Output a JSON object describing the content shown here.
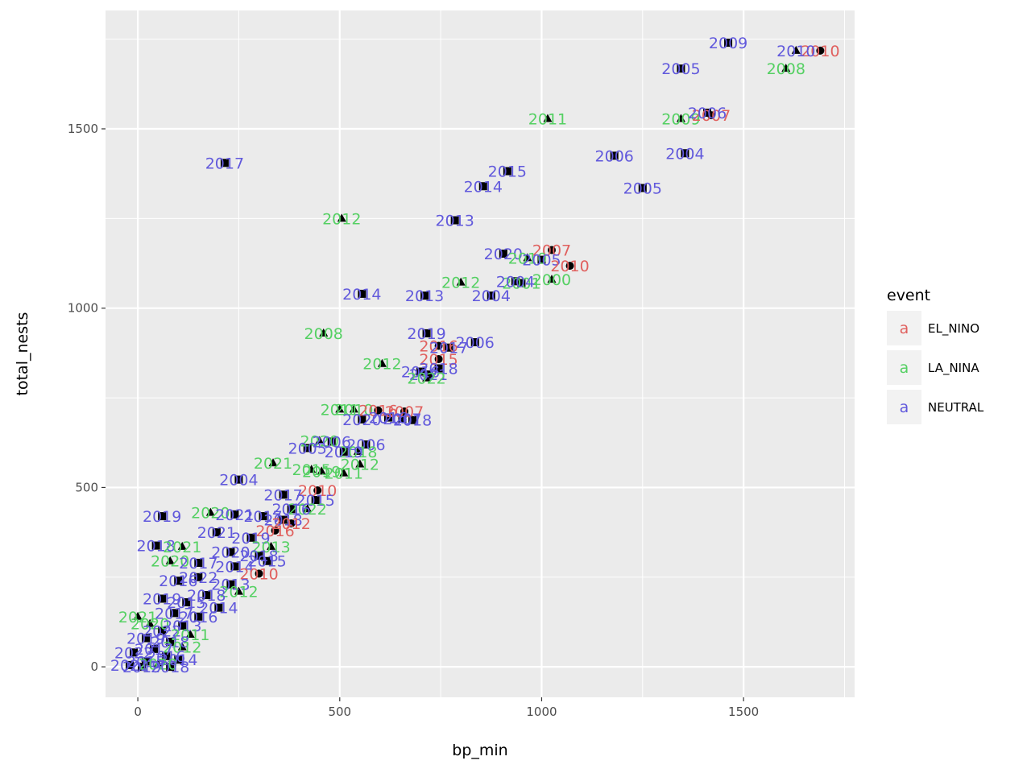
{
  "chart_data": {
    "type": "scatter",
    "xlabel": "bp_min",
    "ylabel": "total_nests",
    "xlim": [
      -80,
      1775
    ],
    "ylim": [
      -85,
      1830
    ],
    "x_ticks": [
      0,
      500,
      1000,
      1500
    ],
    "y_ticks": [
      0,
      500,
      1000,
      1500
    ],
    "grid": true,
    "legend": {
      "title": "event",
      "placement": "right",
      "key_glyph": "a",
      "entries": [
        {
          "name": "EL_NINO",
          "color": "#E0605E"
        },
        {
          "name": "LA_NINA",
          "color": "#55D063"
        },
        {
          "name": "NEUTRAL",
          "color": "#6159DC"
        }
      ]
    },
    "colors": {
      "EL_NINO": "#E0605E",
      "LA_NINA": "#55D063",
      "NEUTRAL": "#6159DC"
    },
    "points": [
      {
        "x": 1462,
        "y": 1740,
        "label": "2009",
        "event": "NEUTRAL",
        "shape": "square"
      },
      {
        "x": 1690,
        "y": 1718,
        "label": "2010",
        "event": "EL_NINO",
        "shape": "circle"
      },
      {
        "x": 1630,
        "y": 1718,
        "label": "2010",
        "event": "NEUTRAL",
        "shape": "triangle"
      },
      {
        "x": 1345,
        "y": 1668,
        "label": "2005",
        "event": "NEUTRAL",
        "shape": "square"
      },
      {
        "x": 1605,
        "y": 1668,
        "label": "2008",
        "event": "LA_NINA",
        "shape": "triangle"
      },
      {
        "x": 1015,
        "y": 1528,
        "label": "2011",
        "event": "LA_NINA",
        "shape": "triangle"
      },
      {
        "x": 1345,
        "y": 1528,
        "label": "2009",
        "event": "LA_NINA",
        "shape": "triangle"
      },
      {
        "x": 1420,
        "y": 1538,
        "label": "2007",
        "event": "EL_NINO",
        "shape": "circle"
      },
      {
        "x": 1410,
        "y": 1545,
        "label": "2006",
        "event": "NEUTRAL",
        "shape": "square"
      },
      {
        "x": 215,
        "y": 1405,
        "label": "2017",
        "event": "NEUTRAL",
        "shape": "square"
      },
      {
        "x": 1180,
        "y": 1425,
        "label": "2006",
        "event": "NEUTRAL",
        "shape": "square"
      },
      {
        "x": 1355,
        "y": 1432,
        "label": "2004",
        "event": "NEUTRAL",
        "shape": "square"
      },
      {
        "x": 915,
        "y": 1382,
        "label": "2015",
        "event": "NEUTRAL",
        "shape": "square"
      },
      {
        "x": 855,
        "y": 1340,
        "label": "2014",
        "event": "NEUTRAL",
        "shape": "square"
      },
      {
        "x": 1250,
        "y": 1335,
        "label": "2005",
        "event": "NEUTRAL",
        "shape": "square"
      },
      {
        "x": 505,
        "y": 1250,
        "label": "2012",
        "event": "LA_NINA",
        "shape": "triangle"
      },
      {
        "x": 785,
        "y": 1245,
        "label": "2013",
        "event": "NEUTRAL",
        "shape": "square"
      },
      {
        "x": 1025,
        "y": 1162,
        "label": "2007",
        "event": "EL_NINO",
        "shape": "circle"
      },
      {
        "x": 905,
        "y": 1152,
        "label": "2020",
        "event": "NEUTRAL",
        "shape": "square"
      },
      {
        "x": 965,
        "y": 1140,
        "label": "2010",
        "event": "LA_NINA",
        "shape": "triangle"
      },
      {
        "x": 1000,
        "y": 1135,
        "label": "2005",
        "event": "NEUTRAL",
        "shape": "square"
      },
      {
        "x": 1070,
        "y": 1118,
        "label": "2010",
        "event": "EL_NINO",
        "shape": "circle"
      },
      {
        "x": 800,
        "y": 1072,
        "label": "2012",
        "event": "LA_NINA",
        "shape": "triangle"
      },
      {
        "x": 1025,
        "y": 1080,
        "label": "2000",
        "event": "LA_NINA",
        "shape": "triangle"
      },
      {
        "x": 950,
        "y": 1070,
        "label": "2001",
        "event": "LA_NINA",
        "shape": "square"
      },
      {
        "x": 935,
        "y": 1075,
        "label": "2004",
        "event": "NEUTRAL",
        "shape": "square"
      },
      {
        "x": 555,
        "y": 1040,
        "label": "2014",
        "event": "NEUTRAL",
        "shape": "square"
      },
      {
        "x": 710,
        "y": 1035,
        "label": "2013",
        "event": "NEUTRAL",
        "shape": "square"
      },
      {
        "x": 875,
        "y": 1035,
        "label": "2004",
        "event": "NEUTRAL",
        "shape": "square"
      },
      {
        "x": 460,
        "y": 930,
        "label": "2008",
        "event": "LA_NINA",
        "shape": "triangle"
      },
      {
        "x": 715,
        "y": 930,
        "label": "2019",
        "event": "NEUTRAL",
        "shape": "square"
      },
      {
        "x": 835,
        "y": 905,
        "label": "2006",
        "event": "NEUTRAL",
        "shape": "square"
      },
      {
        "x": 745,
        "y": 895,
        "label": "2016",
        "event": "EL_NINO",
        "shape": "circle"
      },
      {
        "x": 770,
        "y": 890,
        "label": "2017",
        "event": "NEUTRAL",
        "shape": "square"
      },
      {
        "x": 745,
        "y": 858,
        "label": "2015",
        "event": "EL_NINO",
        "shape": "circle"
      },
      {
        "x": 605,
        "y": 845,
        "label": "2012",
        "event": "LA_NINA",
        "shape": "triangle"
      },
      {
        "x": 745,
        "y": 832,
        "label": "2018",
        "event": "NEUTRAL",
        "shape": "square"
      },
      {
        "x": 700,
        "y": 823,
        "label": "2016",
        "event": "NEUTRAL",
        "shape": "square"
      },
      {
        "x": 720,
        "y": 815,
        "label": "2021",
        "event": "NEUTRAL",
        "shape": "square"
      },
      {
        "x": 715,
        "y": 805,
        "label": "2022",
        "event": "LA_NINA",
        "shape": "triangle"
      },
      {
        "x": 500,
        "y": 718,
        "label": "2011",
        "event": "LA_NINA",
        "shape": "triangle"
      },
      {
        "x": 535,
        "y": 718,
        "label": "2010",
        "event": "LA_NINA",
        "shape": "triangle"
      },
      {
        "x": 595,
        "y": 715,
        "label": "2016",
        "event": "EL_NINO",
        "shape": "circle"
      },
      {
        "x": 660,
        "y": 712,
        "label": "2007",
        "event": "EL_NINO",
        "shape": "circle"
      },
      {
        "x": 555,
        "y": 690,
        "label": "2020",
        "event": "NEUTRAL",
        "shape": "square"
      },
      {
        "x": 620,
        "y": 695,
        "label": "2016",
        "event": "NEUTRAL",
        "shape": "square"
      },
      {
        "x": 655,
        "y": 692,
        "label": "2007",
        "event": "NEUTRAL",
        "shape": "square"
      },
      {
        "x": 680,
        "y": 688,
        "label": "2018",
        "event": "NEUTRAL",
        "shape": "square"
      },
      {
        "x": 450,
        "y": 630,
        "label": "2020",
        "event": "LA_NINA",
        "shape": "triangle"
      },
      {
        "x": 480,
        "y": 628,
        "label": "2006",
        "event": "NEUTRAL",
        "shape": "square"
      },
      {
        "x": 565,
        "y": 620,
        "label": "2006",
        "event": "NEUTRAL",
        "shape": "square"
      },
      {
        "x": 545,
        "y": 600,
        "label": "2018",
        "event": "LA_NINA",
        "shape": "triangle"
      },
      {
        "x": 420,
        "y": 610,
        "label": "2005",
        "event": "NEUTRAL",
        "shape": "square"
      },
      {
        "x": 510,
        "y": 600,
        "label": "2019",
        "event": "NEUTRAL",
        "shape": "square"
      },
      {
        "x": 335,
        "y": 568,
        "label": "2021",
        "event": "LA_NINA",
        "shape": "triangle"
      },
      {
        "x": 550,
        "y": 565,
        "label": "2012",
        "event": "LA_NINA",
        "shape": "triangle"
      },
      {
        "x": 510,
        "y": 540,
        "label": "2011",
        "event": "LA_NINA",
        "shape": "triangle"
      },
      {
        "x": 430,
        "y": 550,
        "label": "2015",
        "event": "LA_NINA",
        "shape": "triangle"
      },
      {
        "x": 455,
        "y": 545,
        "label": "2019",
        "event": "LA_NINA",
        "shape": "triangle"
      },
      {
        "x": 250,
        "y": 522,
        "label": "2004",
        "event": "NEUTRAL",
        "shape": "square"
      },
      {
        "x": 445,
        "y": 492,
        "label": "2010",
        "event": "EL_NINO",
        "shape": "circle"
      },
      {
        "x": 360,
        "y": 480,
        "label": "2017",
        "event": "NEUTRAL",
        "shape": "square"
      },
      {
        "x": 440,
        "y": 465,
        "label": "2015",
        "event": "NEUTRAL",
        "shape": "square"
      },
      {
        "x": 420,
        "y": 440,
        "label": "2022",
        "event": "LA_NINA",
        "shape": "triangle"
      },
      {
        "x": 380,
        "y": 440,
        "label": "2016",
        "event": "NEUTRAL",
        "shape": "square"
      },
      {
        "x": 60,
        "y": 420,
        "label": "2019",
        "event": "NEUTRAL",
        "shape": "square"
      },
      {
        "x": 180,
        "y": 430,
        "label": "2020",
        "event": "LA_NINA",
        "shape": "triangle"
      },
      {
        "x": 240,
        "y": 425,
        "label": "2021",
        "event": "NEUTRAL",
        "shape": "square"
      },
      {
        "x": 310,
        "y": 420,
        "label": "2017",
        "event": "NEUTRAL",
        "shape": "square"
      },
      {
        "x": 360,
        "y": 410,
        "label": "2018",
        "event": "NEUTRAL",
        "shape": "square"
      },
      {
        "x": 380,
        "y": 400,
        "label": "2012",
        "event": "EL_NINO",
        "shape": "circle"
      },
      {
        "x": 340,
        "y": 380,
        "label": "2016",
        "event": "EL_NINO",
        "shape": "circle"
      },
      {
        "x": 195,
        "y": 375,
        "label": "2021",
        "event": "NEUTRAL",
        "shape": "square"
      },
      {
        "x": 280,
        "y": 360,
        "label": "2019",
        "event": "NEUTRAL",
        "shape": "square"
      },
      {
        "x": 45,
        "y": 338,
        "label": "2018",
        "event": "NEUTRAL",
        "shape": "square"
      },
      {
        "x": 110,
        "y": 335,
        "label": "2021",
        "event": "LA_NINA",
        "shape": "triangle"
      },
      {
        "x": 330,
        "y": 335,
        "label": "2013",
        "event": "LA_NINA",
        "shape": "triangle"
      },
      {
        "x": 230,
        "y": 320,
        "label": "2020",
        "event": "NEUTRAL",
        "shape": "square"
      },
      {
        "x": 300,
        "y": 310,
        "label": "2018",
        "event": "NEUTRAL",
        "shape": "square"
      },
      {
        "x": 80,
        "y": 295,
        "label": "2020",
        "event": "LA_NINA",
        "shape": "triangle"
      },
      {
        "x": 150,
        "y": 290,
        "label": "2017",
        "event": "NEUTRAL",
        "shape": "square"
      },
      {
        "x": 320,
        "y": 295,
        "label": "2015",
        "event": "NEUTRAL",
        "shape": "square"
      },
      {
        "x": 240,
        "y": 280,
        "label": "2014",
        "event": "NEUTRAL",
        "shape": "square"
      },
      {
        "x": 300,
        "y": 260,
        "label": "2010",
        "event": "EL_NINO",
        "shape": "circle"
      },
      {
        "x": 150,
        "y": 250,
        "label": "2022",
        "event": "NEUTRAL",
        "shape": "square"
      },
      {
        "x": 100,
        "y": 240,
        "label": "2016",
        "event": "NEUTRAL",
        "shape": "square"
      },
      {
        "x": 230,
        "y": 230,
        "label": "2013",
        "event": "NEUTRAL",
        "shape": "square"
      },
      {
        "x": 250,
        "y": 210,
        "label": "2012",
        "event": "LA_NINA",
        "shape": "triangle"
      },
      {
        "x": 170,
        "y": 200,
        "label": "2018",
        "event": "NEUTRAL",
        "shape": "square"
      },
      {
        "x": 60,
        "y": 190,
        "label": "2019",
        "event": "NEUTRAL",
        "shape": "square"
      },
      {
        "x": 120,
        "y": 180,
        "label": "2015",
        "event": "NEUTRAL",
        "shape": "square"
      },
      {
        "x": 200,
        "y": 165,
        "label": "2014",
        "event": "NEUTRAL",
        "shape": "square"
      },
      {
        "x": 90,
        "y": 150,
        "label": "2017",
        "event": "NEUTRAL",
        "shape": "square"
      },
      {
        "x": 150,
        "y": 140,
        "label": "2016",
        "event": "NEUTRAL",
        "shape": "square"
      },
      {
        "x": 0,
        "y": 140,
        "label": "2021",
        "event": "LA_NINA",
        "shape": "triangle"
      },
      {
        "x": 30,
        "y": 120,
        "label": "2020",
        "event": "LA_NINA",
        "shape": "triangle"
      },
      {
        "x": 110,
        "y": 115,
        "label": "2013",
        "event": "NEUTRAL",
        "shape": "square"
      },
      {
        "x": 60,
        "y": 100,
        "label": "2022",
        "event": "NEUTRAL",
        "shape": "square"
      },
      {
        "x": 130,
        "y": 90,
        "label": "2011",
        "event": "LA_NINA",
        "shape": "triangle"
      },
      {
        "x": 20,
        "y": 80,
        "label": "2019",
        "event": "NEUTRAL",
        "shape": "square"
      },
      {
        "x": 80,
        "y": 70,
        "label": "2018",
        "event": "NEUTRAL",
        "shape": "square"
      },
      {
        "x": 110,
        "y": 55,
        "label": "2012",
        "event": "LA_NINA",
        "shape": "triangle"
      },
      {
        "x": 40,
        "y": 50,
        "label": "2017",
        "event": "NEUTRAL",
        "shape": "square"
      },
      {
        "x": -10,
        "y": 40,
        "label": "2022",
        "event": "NEUTRAL",
        "shape": "square"
      },
      {
        "x": 70,
        "y": 30,
        "label": "2016",
        "event": "NEUTRAL",
        "shape": "square"
      },
      {
        "x": 100,
        "y": 20,
        "label": "2014",
        "event": "NEUTRAL",
        "shape": "square"
      },
      {
        "x": 20,
        "y": 15,
        "label": "2015",
        "event": "NEUTRAL",
        "shape": "square"
      },
      {
        "x": 50,
        "y": 8,
        "label": "2020",
        "event": "LA_NINA",
        "shape": "triangle"
      },
      {
        "x": -20,
        "y": 5,
        "label": "2021",
        "event": "NEUTRAL",
        "shape": "square"
      },
      {
        "x": 10,
        "y": 0,
        "label": "2019",
        "event": "NEUTRAL",
        "shape": "square"
      },
      {
        "x": 80,
        "y": 0,
        "label": "2018",
        "event": "NEUTRAL",
        "shape": "square"
      }
    ]
  }
}
